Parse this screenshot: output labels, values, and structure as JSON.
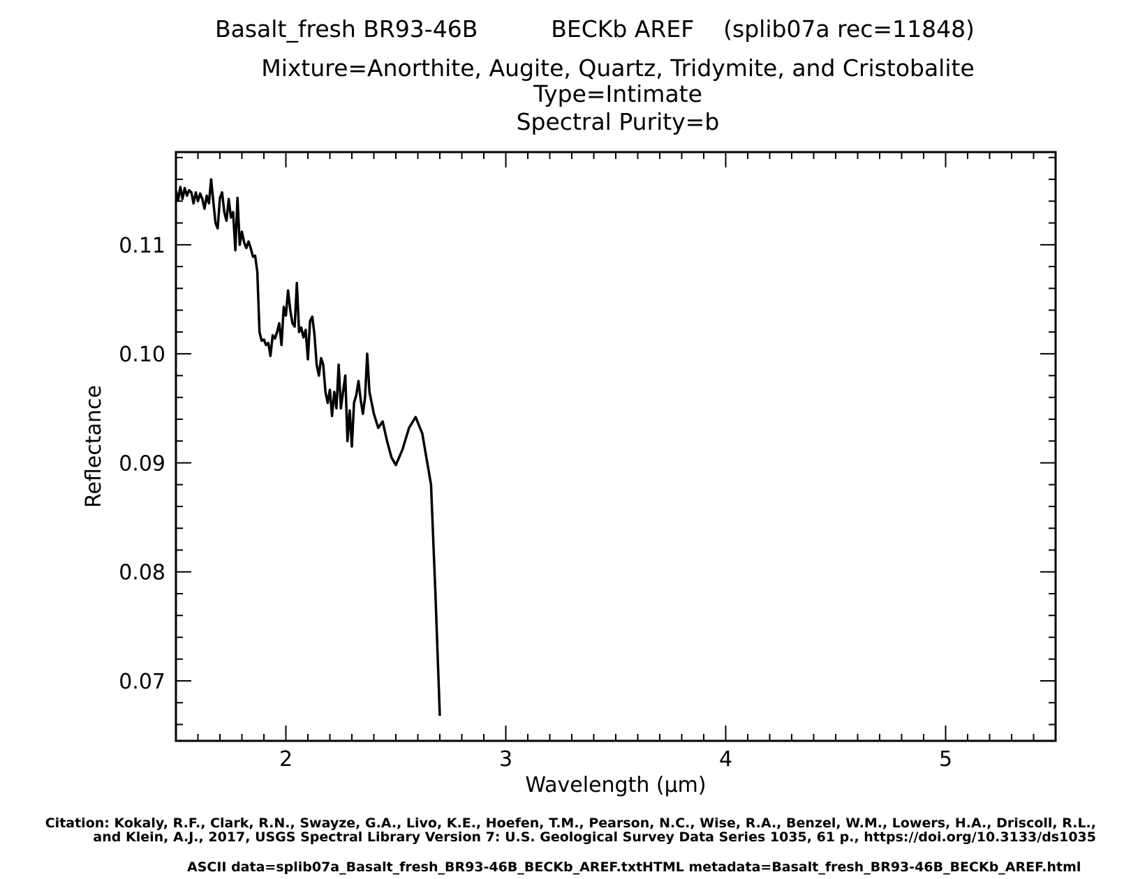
{
  "header": {
    "line1": "Basalt_fresh BR93-46B          BECKb AREF    (splib07a rec=11848)",
    "line2": "Mixture=Anorthite, Augite, Quartz, Tridymite, and Cristobalite",
    "line3": "Type=Intimate",
    "line4": "Spectral Purity=b"
  },
  "footer": {
    "citation_line1": "Citation: Kokaly, R.F., Clark, R.N., Swayze, G.A., Livo, K.E., Hoefen, T.M., Pearson, N.C., Wise, R.A., Benzel, W.M., Lowers, H.A., Driscoll, R.L.,",
    "citation_line2": "and Klein, A.J., 2017, USGS Spectral Library Version 7: U.S. Geological Survey Data Series 1035, 61 p., https://doi.org/10.3133/ds1035",
    "ascii": "ASCII data=splib07a_Basalt_fresh_BR93-46B_BECKb_AREF.txt",
    "html": "HTML metadata=Basalt_fresh_BR93-46B_BECKb_AREF.html"
  },
  "chart_data": {
    "type": "line",
    "title": "Basalt_fresh BR93-46B BECKb AREF (splib07a rec=11848)",
    "xlabel": "Wavelength (μm)",
    "ylabel": "Reflectance",
    "xlim": [
      1.5,
      5.5
    ],
    "ylim": [
      0.0645,
      0.1185
    ],
    "xticks": [
      2,
      3,
      4,
      5
    ],
    "yticks": [
      0.07,
      0.08,
      0.09,
      0.1,
      0.11
    ],
    "ytick_labels": [
      "0.07",
      "0.08",
      "0.09",
      "0.10",
      "0.11"
    ],
    "grid": false,
    "series": [
      {
        "color": "#000000",
        "x": [
          1.5,
          1.51,
          1.52,
          1.53,
          1.54,
          1.55,
          1.56,
          1.57,
          1.58,
          1.59,
          1.6,
          1.61,
          1.62,
          1.63,
          1.64,
          1.65,
          1.66,
          1.67,
          1.68,
          1.69,
          1.7,
          1.71,
          1.72,
          1.73,
          1.74,
          1.75,
          1.76,
          1.77,
          1.78,
          1.79,
          1.8,
          1.81,
          1.82,
          1.83,
          1.84,
          1.85,
          1.86,
          1.87,
          1.88,
          1.89,
          1.9,
          1.91,
          1.92,
          1.93,
          1.94,
          1.95,
          1.96,
          1.97,
          1.98,
          1.99,
          2.0,
          2.01,
          2.02,
          2.03,
          2.04,
          2.05,
          2.06,
          2.07,
          2.08,
          2.09,
          2.1,
          2.11,
          2.12,
          2.13,
          2.14,
          2.15,
          2.16,
          2.17,
          2.18,
          2.19,
          2.2,
          2.21,
          2.22,
          2.23,
          2.24,
          2.25,
          2.26,
          2.27,
          2.28,
          2.29,
          2.3,
          2.31,
          2.32,
          2.33,
          2.34,
          2.35,
          2.36,
          2.37,
          2.38,
          2.39,
          2.4,
          2.42,
          2.44,
          2.46,
          2.48,
          2.5,
          2.53,
          2.56,
          2.59,
          2.62,
          2.66,
          2.68,
          2.7
        ],
        "y": [
          0.115,
          0.1141,
          0.1153,
          0.1142,
          0.1152,
          0.1145,
          0.115,
          0.1148,
          0.1138,
          0.1148,
          0.114,
          0.1147,
          0.1142,
          0.1133,
          0.1145,
          0.1138,
          0.116,
          0.114,
          0.112,
          0.1115,
          0.1143,
          0.1148,
          0.113,
          0.1122,
          0.1142,
          0.1125,
          0.113,
          0.1095,
          0.1143,
          0.11,
          0.1112,
          0.1102,
          0.1097,
          0.1103,
          0.1097,
          0.1089,
          0.109,
          0.1075,
          0.102,
          0.1012,
          0.1013,
          0.1008,
          0.101,
          0.0998,
          0.1017,
          0.1014,
          0.102,
          0.1028,
          0.1008,
          0.1043,
          0.1035,
          0.1058,
          0.104,
          0.1028,
          0.1025,
          0.1065,
          0.102,
          0.1024,
          0.1015,
          0.1022,
          0.0995,
          0.103,
          0.1034,
          0.1018,
          0.099,
          0.098,
          0.0996,
          0.099,
          0.0965,
          0.0955,
          0.0967,
          0.0943,
          0.0965,
          0.095,
          0.099,
          0.095,
          0.0965,
          0.098,
          0.092,
          0.0948,
          0.0915,
          0.0955,
          0.0962,
          0.0975,
          0.0958,
          0.0945,
          0.096,
          0.1,
          0.0965,
          0.0955,
          0.0945,
          0.0932,
          0.0938,
          0.092,
          0.0905,
          0.0898,
          0.0912,
          0.0932,
          0.0942,
          0.0927,
          0.088,
          0.078,
          0.0668
        ]
      }
    ]
  }
}
